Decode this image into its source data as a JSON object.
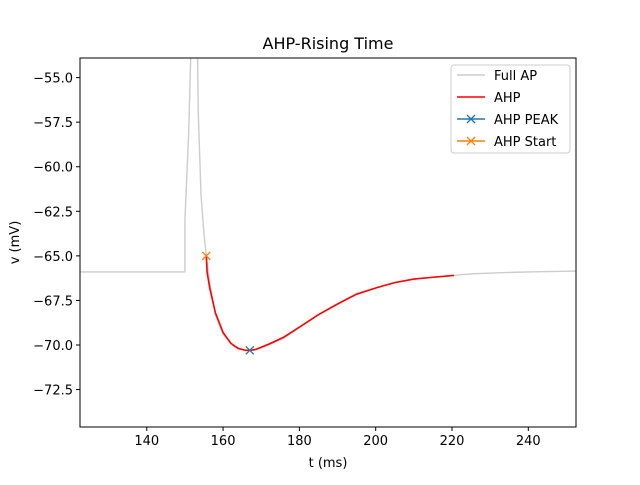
{
  "chart_data": {
    "type": "line",
    "title": "AHP-Rising Time",
    "xlabel": "t (ms)",
    "ylabel": "v (mV)",
    "xlim": [
      122.5,
      252.5
    ],
    "ylim": [
      -74.6,
      -53.9
    ],
    "xticks": [
      140,
      160,
      180,
      200,
      220,
      240
    ],
    "xtick_labels": [
      "140",
      "160",
      "180",
      "200",
      "220",
      "240"
    ],
    "yticks": [
      -55.0,
      -57.5,
      -60.0,
      -62.5,
      -65.0,
      -67.5,
      -70.0,
      -72.5
    ],
    "ytick_labels": [
      "−55.0",
      "−57.5",
      "−60.0",
      "−62.5",
      "−65.0",
      "−67.5",
      "−70.0",
      "−72.5"
    ],
    "grid": false,
    "legend_position": "upper right",
    "series": [
      {
        "name": "Full AP",
        "color": "#cccccc",
        "marker": "none",
        "x": [
          122.5,
          150.0,
          150.0,
          151.0,
          152.0,
          152.8,
          153.5,
          154.2,
          155.0,
          155.6,
          156.5,
          158.0,
          160.0,
          163.0,
          166.0,
          168.0,
          172.0,
          176.0,
          180.0,
          185.0,
          190.0,
          195.0,
          200.0,
          205.0,
          210.0,
          215.0,
          220.0,
          226.0,
          232.0,
          240.0,
          252.5
        ],
        "y": [
          -65.9,
          -65.9,
          -63.0,
          -58.0,
          -50.0,
          -45.0,
          -57.0,
          -61.5,
          -63.8,
          -65.0,
          -66.5,
          -68.3,
          -69.4,
          -70.1,
          -70.3,
          -70.3,
          -70.0,
          -69.6,
          -69.0,
          -68.3,
          -67.7,
          -67.1,
          -66.8,
          -66.5,
          -66.3,
          -66.2,
          -66.1,
          -66.0,
          -65.95,
          -65.9,
          -65.85
        ]
      },
      {
        "name": "AHP",
        "color": "#ff0000",
        "marker": "none",
        "x": [
          155.6,
          155.8,
          156.5,
          158.0,
          160.0,
          162.0,
          164.0,
          166.0,
          167.0,
          168.5,
          172.0,
          176.0,
          180.0,
          185.0,
          190.0,
          195.0,
          200.0,
          205.0,
          210.0,
          215.0,
          220.5
        ],
        "y": [
          -65.0,
          -65.9,
          -66.8,
          -68.2,
          -69.3,
          -69.9,
          -70.2,
          -70.3,
          -70.3,
          -70.25,
          -69.95,
          -69.55,
          -69.0,
          -68.3,
          -67.7,
          -67.15,
          -66.8,
          -66.5,
          -66.3,
          -66.2,
          -66.1
        ]
      },
      {
        "name": "AHP PEAK",
        "color": "#1f77b4",
        "marker": "x",
        "x": [
          167.0
        ],
        "y": [
          -70.3
        ]
      },
      {
        "name": "AHP Start",
        "color": "#ff7f0e",
        "marker": "x",
        "x": [
          155.6
        ],
        "y": [
          -65.0
        ]
      }
    ]
  }
}
